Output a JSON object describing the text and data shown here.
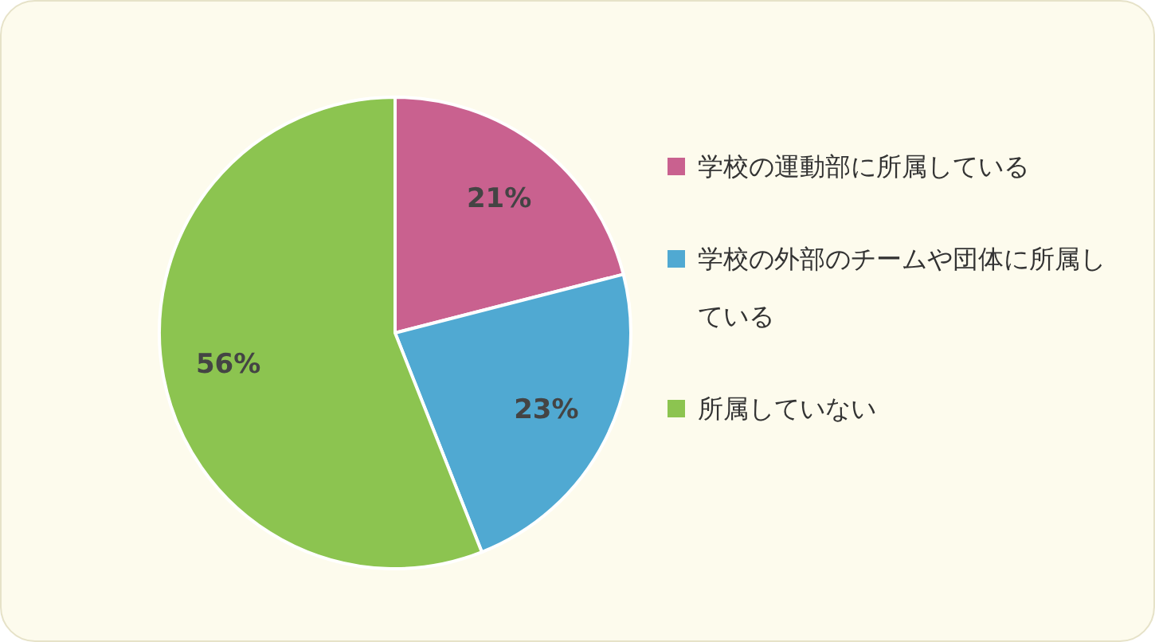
{
  "chart_data": {
    "type": "pie",
    "categories": [
      "学校の運動部に所属している",
      "学校の外部のチームや団体に所属している",
      "所属していない"
    ],
    "values": [
      21,
      23,
      56
    ],
    "colors": [
      "#c9618f",
      "#50a9d2",
      "#8cc450"
    ],
    "value_labels": [
      "21%",
      "23%",
      "56%"
    ],
    "legend": "right"
  }
}
